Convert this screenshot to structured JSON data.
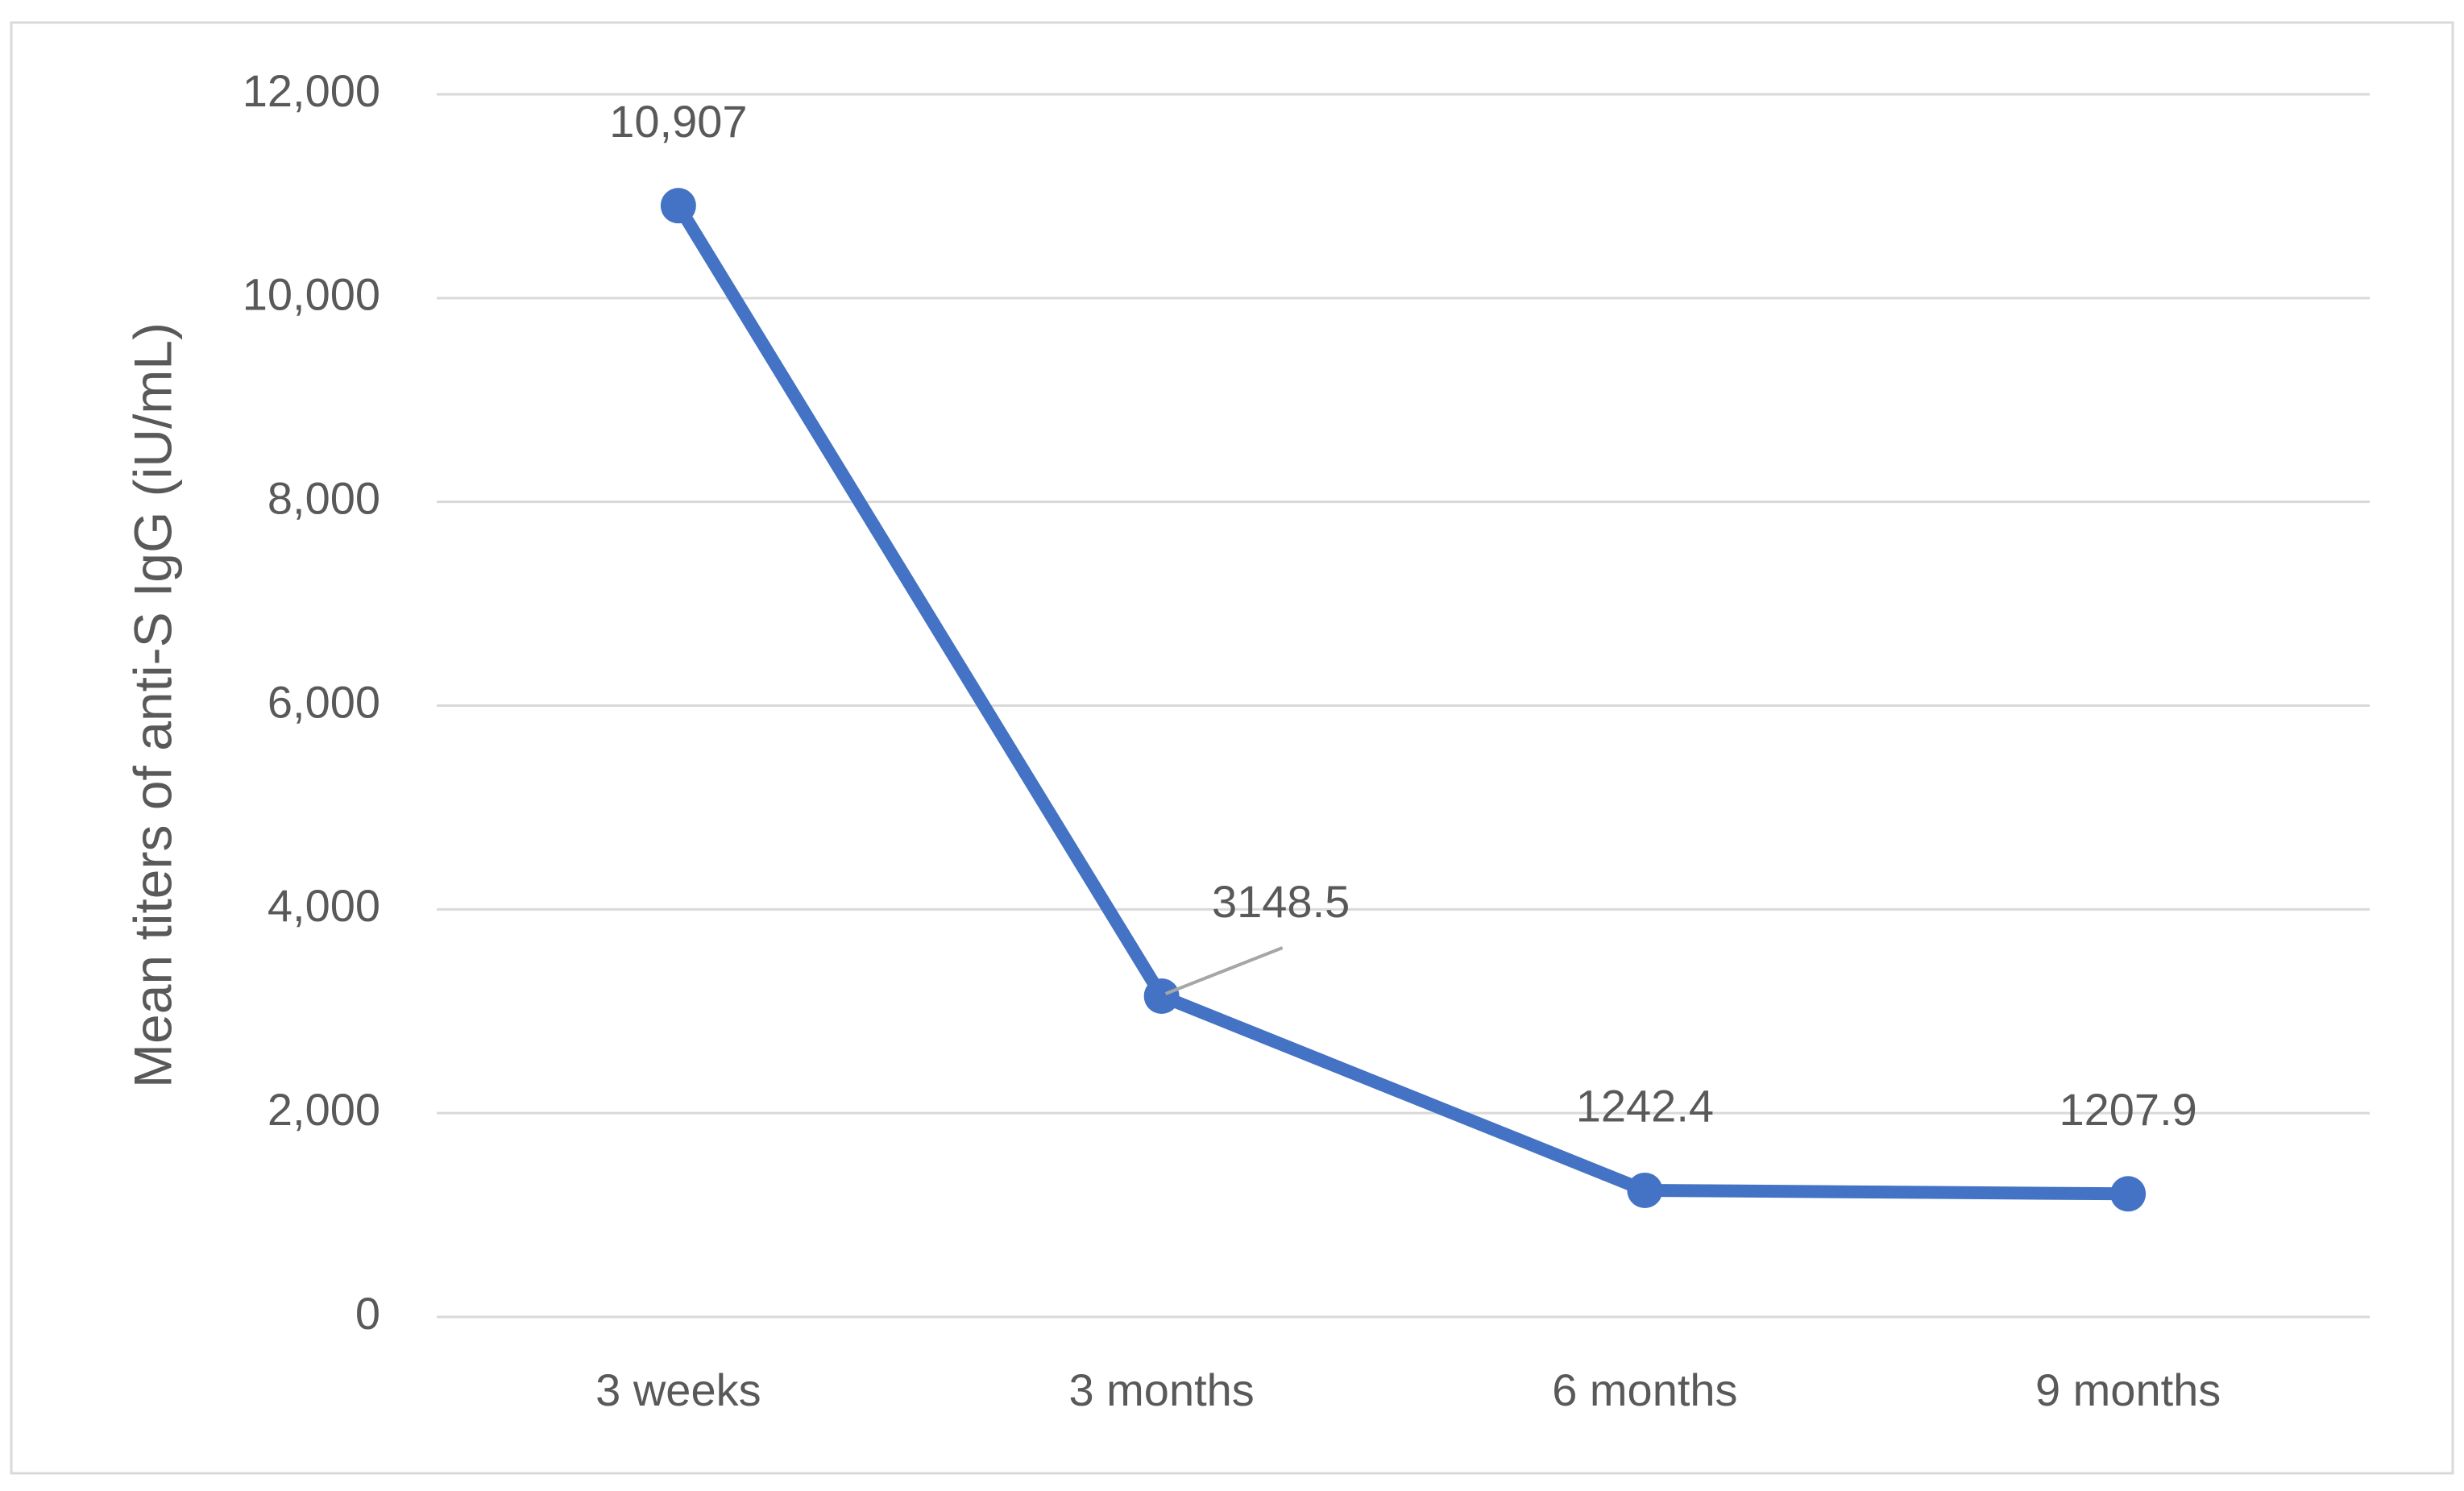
{
  "chart_data": {
    "type": "line",
    "y_label": "Mean titers of anti-S IgG (iU/mL)",
    "categories": [
      "3 weeks",
      "3 months",
      "6 months",
      "9 months"
    ],
    "values": [
      10907,
      3148.5,
      1242.4,
      1207.9
    ],
    "value_labels": [
      "10,907",
      "3148.5",
      "1242.4",
      "1207.9"
    ],
    "color": "#4472c4",
    "ylim": [
      0,
      12000
    ],
    "yticks": [
      0,
      {
        "value": 2000,
        "label": "2,000"
      },
      {
        "value": 4000,
        "label": "4,000"
      },
      {
        "value": 6000,
        "label": "6,000"
      },
      {
        "value": 8000,
        "label": "8,000"
      },
      {
        "value": 10000,
        "label": "10,000"
      },
      {
        "value": 12000,
        "label": "12,000"
      }
    ],
    "grid": true
  }
}
